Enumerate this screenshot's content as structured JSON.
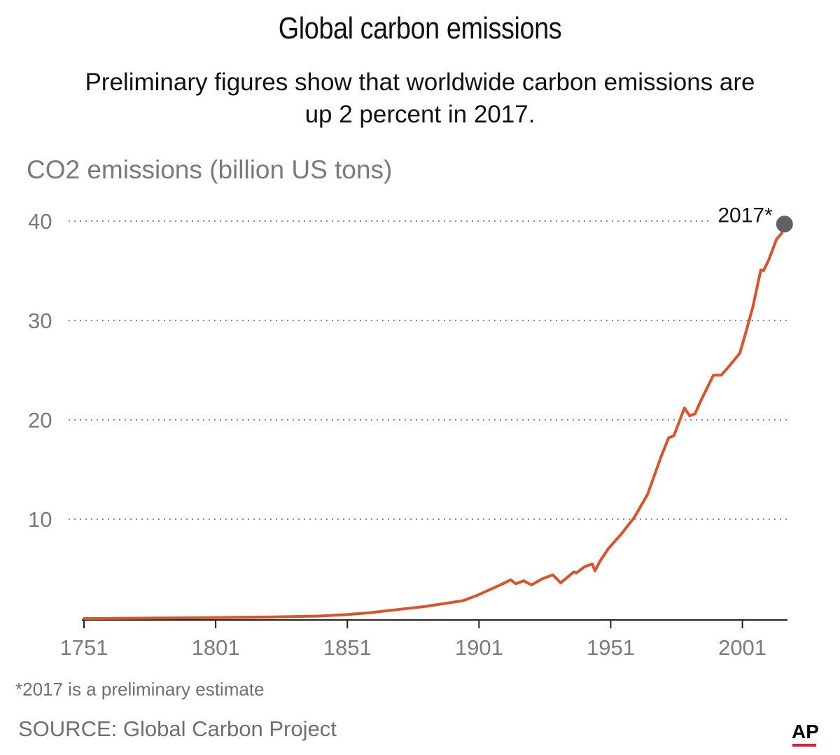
{
  "header": {
    "title": "Global carbon emissions",
    "subtitle": "Preliminary figures show that worldwide carbon emissions are up 2 percent in 2017."
  },
  "footer": {
    "note": "*2017 is a preliminary estimate",
    "source": "SOURCE: Global Carbon Project",
    "logo": "AP"
  },
  "colors": {
    "line": "#d9532b",
    "grid": "#8a8a8a",
    "tick_text": "#7a7a7a",
    "marker": "#5f6166",
    "logo_accent": "#e8173a"
  },
  "chart_data": {
    "type": "line",
    "ylabel": "CO2 emissions (billion US tons)",
    "xlabel": "",
    "xlim": [
      1751,
      2021
    ],
    "ylim": [
      0,
      40
    ],
    "xticks": [
      "1751",
      "1801",
      "1851",
      "1901",
      "1951",
      "2001"
    ],
    "yticks": [
      "10",
      "20",
      "30",
      "40"
    ],
    "grid": "horizontal dotted",
    "series": [
      {
        "x": [
          1751,
          1780,
          1801,
          1820,
          1840,
          1851,
          1860,
          1870,
          1880,
          1890,
          1895,
          1900,
          1905,
          1910,
          1913,
          1915,
          1918,
          1920,
          1921,
          1925,
          1929,
          1932,
          1937,
          1938,
          1941,
          1944,
          1945,
          1947,
          1950,
          1955,
          1960,
          1965,
          1970,
          1973,
          1975,
          1979,
          1981,
          1983,
          1985,
          1990,
          1993,
          1995,
          2000,
          2002,
          2005,
          2008,
          2009,
          2011,
          2013,
          2014,
          2016
        ],
        "values": [
          0.0,
          0.05,
          0.1,
          0.15,
          0.25,
          0.4,
          0.6,
          0.9,
          1.2,
          1.6,
          1.8,
          2.3,
          2.9,
          3.5,
          3.9,
          3.5,
          3.8,
          3.5,
          3.4,
          4.0,
          4.4,
          3.6,
          4.7,
          4.6,
          5.2,
          5.5,
          4.8,
          5.8,
          7.0,
          8.5,
          10.2,
          12.5,
          16.2,
          18.2,
          18.4,
          21.2,
          20.4,
          20.6,
          21.8,
          24.5,
          24.5,
          25.1,
          26.7,
          28.5,
          31.4,
          35.1,
          35.0,
          36.1,
          37.5,
          38.2,
          38.8
        ]
      }
    ],
    "marker": {
      "label": "2017*",
      "x": 2017,
      "y": 39.7
    }
  }
}
